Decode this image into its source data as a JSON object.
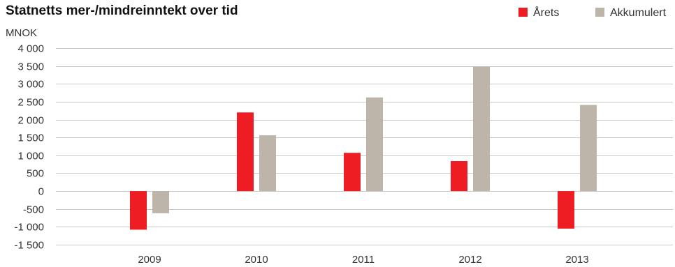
{
  "colors": {
    "arets": "#ee1d23",
    "akkumulert": "#bdb4aa",
    "grid": "#c8c8c8"
  },
  "chart_data": {
    "type": "bar",
    "title": "Statnetts mer-/mindreinntekt over tid",
    "ylabel": "MNOK",
    "xlabel": "",
    "categories": [
      "2009",
      "2010",
      "2011",
      "2012",
      "2013"
    ],
    "ylim": [
      -1500,
      4000
    ],
    "yticks": [
      4000,
      3500,
      3000,
      2500,
      2000,
      1500,
      1000,
      500,
      0,
      -500,
      -1000,
      -1500
    ],
    "ytick_labels": [
      "4 000",
      "3 500",
      "3 000",
      "2 500",
      "2 000",
      "1 500",
      "1 000",
      "500",
      "0",
      "-500",
      "-1 000",
      "-1 500"
    ],
    "grid": true,
    "legend_position": "top-right",
    "series": [
      {
        "name": "Årets",
        "color": "#ee1d23",
        "values": [
          -1080,
          2200,
          1070,
          840,
          -1050
        ]
      },
      {
        "name": "Akkumulert",
        "color": "#bdb4aa",
        "values": [
          -620,
          1560,
          2620,
          3480,
          2410
        ]
      }
    ]
  }
}
